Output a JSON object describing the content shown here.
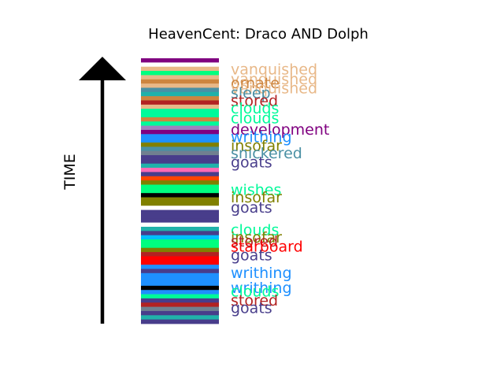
{
  "chart_data": {
    "type": "timeline-strip",
    "title": "HeavenCent: Draco AND Dolph",
    "axis_label": "TIME",
    "stripe_sequence": [
      "#800080",
      "#ffffff",
      "#e8b888",
      "#00ff7f",
      "#e8b888",
      "#cd853f",
      "#e8b888",
      "#4a90a4",
      "#20b2aa",
      "#cd853f",
      "#b22222",
      "#e8b888",
      "#00fa9a",
      "#00fa9a",
      "#cd853f",
      "#00fa9a",
      "#a080c0",
      "#800080",
      "#1e90ff",
      "#1e90ff",
      "#808000",
      "#4a90a4",
      "#708090",
      "#483d8b",
      "#483d8b",
      "#20b2aa",
      "#ff69b4",
      "#483d8b",
      "#ff4500",
      "#808000",
      "#00ff7f",
      "#00ff7f",
      "#000000",
      "#808000",
      "#808000",
      "#ffffff",
      "#483d8b",
      "#483d8b",
      "#483d8b",
      "#ffffff",
      "#20b2aa",
      "#483d8b",
      "#00bfff",
      "#00ff7f",
      "#00ff7f",
      "#808000",
      "#b22222",
      "#ff0000",
      "#ff0000",
      "#1e90ff",
      "#483d8b",
      "#1e90ff",
      "#1e90ff",
      "#1e90ff",
      "#000000",
      "#1e90ff",
      "#00fa9a",
      "#483d8b",
      "#b22222",
      "#708090",
      "#483d8b",
      "#20b2aa",
      "#483d8b"
    ],
    "labels": [
      {
        "text": "vanquished",
        "position": 0.02,
        "color": "#e8b888"
      },
      {
        "text": "vanquished",
        "position": 0.06,
        "color": "#e8b888"
      },
      {
        "text": "ornate",
        "position": 0.075,
        "color": "#cd853f"
      },
      {
        "text": "vanquished",
        "position": 0.095,
        "color": "#e8b888"
      },
      {
        "text": "sleep",
        "position": 0.115,
        "color": "#4a90a4"
      },
      {
        "text": "stored",
        "position": 0.145,
        "color": "#b22222"
      },
      {
        "text": "clouds",
        "position": 0.175,
        "color": "#00fa9a"
      },
      {
        "text": "clouds",
        "position": 0.215,
        "color": "#00fa9a"
      },
      {
        "text": "development",
        "position": 0.26,
        "color": "#800080"
      },
      {
        "text": "writhing",
        "position": 0.29,
        "color": "#1e90ff"
      },
      {
        "text": "insofar",
        "position": 0.325,
        "color": "#808000"
      },
      {
        "text": "snickered",
        "position": 0.355,
        "color": "#4a90a4"
      },
      {
        "text": "goats",
        "position": 0.39,
        "color": "#483d8b"
      },
      {
        "text": "wishes",
        "position": 0.5,
        "color": "#00fa9a"
      },
      {
        "text": "insofar",
        "position": 0.53,
        "color": "#808000"
      },
      {
        "text": "goats",
        "position": 0.57,
        "color": "#483d8b"
      },
      {
        "text": "clouds",
        "position": 0.66,
        "color": "#00fa9a"
      },
      {
        "text": "insofar",
        "position": 0.69,
        "color": "#808000"
      },
      {
        "text": "stored",
        "position": 0.705,
        "color": "#b22222"
      },
      {
        "text": "starboard",
        "position": 0.725,
        "color": "#ff0000"
      },
      {
        "text": "goats",
        "position": 0.76,
        "color": "#483d8b"
      },
      {
        "text": "writhing",
        "position": 0.83,
        "color": "#1e90ff"
      },
      {
        "text": "writhing",
        "position": 0.89,
        "color": "#1e90ff"
      },
      {
        "text": "clouds",
        "position": 0.905,
        "color": "#00fa9a"
      },
      {
        "text": "stored",
        "position": 0.94,
        "color": "#b22222"
      },
      {
        "text": "goats",
        "position": 0.97,
        "color": "#483d8b"
      }
    ]
  }
}
